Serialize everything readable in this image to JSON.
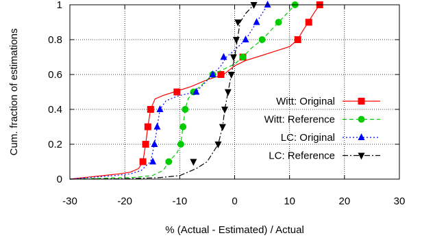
{
  "chart_data": {
    "type": "line",
    "xlabel": "% (Actual - Estimated) / Actual",
    "ylabel": "Cum. fraction of estimations",
    "xlim": [
      -30,
      30
    ],
    "ylim": [
      0,
      1
    ],
    "x_ticks": [
      "-30",
      "-20",
      "-10",
      "0",
      "10",
      "20",
      "30"
    ],
    "y_ticks": [
      "0",
      "0.2",
      "0.4",
      "0.6",
      "0.8",
      "1"
    ],
    "x_tick_values": [
      -30,
      -20,
      -10,
      0,
      10,
      20,
      30
    ],
    "y_tick_values": [
      0,
      0.2,
      0.4,
      0.6,
      0.8,
      1
    ],
    "grid": true,
    "legend_position": "bottom-right",
    "series": [
      {
        "name": "Witt: Original",
        "color": "#ff0000",
        "dash": "solid",
        "marker": "square",
        "curve": [
          [
            -30,
            0
          ],
          [
            -27,
            0.01
          ],
          [
            -24,
            0.02
          ],
          [
            -21,
            0.03
          ],
          [
            -19,
            0.04
          ],
          [
            -17.5,
            0.06
          ],
          [
            -16.7,
            0.1
          ],
          [
            -16.2,
            0.2
          ],
          [
            -15.8,
            0.3
          ],
          [
            -15.3,
            0.4
          ],
          [
            -14.5,
            0.46
          ],
          [
            -13,
            0.48
          ],
          [
            -11,
            0.5
          ],
          [
            -8,
            0.53
          ],
          [
            -5,
            0.57
          ],
          [
            -2,
            0.6
          ],
          [
            0,
            0.65
          ],
          [
            2,
            0.68
          ],
          [
            5,
            0.71
          ],
          [
            8,
            0.74
          ],
          [
            10,
            0.76
          ],
          [
            11.5,
            0.8
          ],
          [
            12.2,
            0.84
          ],
          [
            13,
            0.88
          ],
          [
            13.8,
            0.92
          ],
          [
            14.6,
            0.96
          ],
          [
            15.5,
            1
          ]
        ],
        "markers": [
          [
            -16.7,
            0.1
          ],
          [
            -16.2,
            0.2
          ],
          [
            -15.8,
            0.3
          ],
          [
            -15.3,
            0.4
          ],
          [
            -10.5,
            0.5
          ],
          [
            -2.5,
            0.6
          ],
          [
            1.5,
            0.7
          ],
          [
            11.5,
            0.8
          ],
          [
            13.5,
            0.9
          ],
          [
            15.5,
            1
          ]
        ]
      },
      {
        "name": "Witt: Reference",
        "color": "#00cc00",
        "dash": "6,4",
        "marker": "circle",
        "curve": [
          [
            -30,
            0
          ],
          [
            -24,
            0.005
          ],
          [
            -18,
            0.01
          ],
          [
            -15,
            0.02
          ],
          [
            -13,
            0.05
          ],
          [
            -12,
            0.1
          ],
          [
            -10.5,
            0.15
          ],
          [
            -9.8,
            0.2
          ],
          [
            -9.4,
            0.3
          ],
          [
            -9,
            0.4
          ],
          [
            -8.5,
            0.46
          ],
          [
            -7.5,
            0.5
          ],
          [
            -6,
            0.54
          ],
          [
            -4,
            0.6
          ],
          [
            -2,
            0.63
          ],
          [
            0,
            0.66
          ],
          [
            1.5,
            0.7
          ],
          [
            3,
            0.75
          ],
          [
            5,
            0.8
          ],
          [
            6.5,
            0.85
          ],
          [
            8,
            0.9
          ],
          [
            9.5,
            0.95
          ],
          [
            11,
            1
          ]
        ],
        "markers": [
          [
            -12,
            0.1
          ],
          [
            -9.8,
            0.2
          ],
          [
            -9.4,
            0.3
          ],
          [
            -9,
            0.4
          ],
          [
            -7.5,
            0.5
          ],
          [
            -4,
            0.6
          ],
          [
            1.5,
            0.7
          ],
          [
            5,
            0.8
          ],
          [
            8,
            0.9
          ],
          [
            11,
            1
          ]
        ]
      },
      {
        "name": "LC: Original",
        "color": "#0000ff",
        "dash": "2,3",
        "marker": "triangle",
        "curve": [
          [
            -30,
            0
          ],
          [
            -26,
            0.01
          ],
          [
            -22,
            0.02
          ],
          [
            -19,
            0.03
          ],
          [
            -17,
            0.05
          ],
          [
            -16,
            0.08
          ],
          [
            -15.3,
            0.1
          ],
          [
            -14.6,
            0.2
          ],
          [
            -14.1,
            0.3
          ],
          [
            -13.6,
            0.4
          ],
          [
            -12.5,
            0.45
          ],
          [
            -10,
            0.48
          ],
          [
            -7,
            0.5
          ],
          [
            -5.5,
            0.55
          ],
          [
            -4,
            0.6
          ],
          [
            -2.5,
            0.65
          ],
          [
            -1.5,
            0.7
          ],
          [
            0,
            0.74
          ],
          [
            2,
            0.8
          ],
          [
            3,
            0.85
          ],
          [
            4,
            0.9
          ],
          [
            5,
            0.95
          ],
          [
            6,
            1
          ]
        ],
        "markers": [
          [
            -14.9,
            0.1
          ],
          [
            -14.6,
            0.2
          ],
          [
            -14.1,
            0.3
          ],
          [
            -13.6,
            0.4
          ],
          [
            -7,
            0.5
          ],
          [
            -4,
            0.6
          ],
          [
            -2,
            0.7
          ],
          [
            2,
            0.8
          ],
          [
            4,
            0.9
          ],
          [
            6,
            1
          ]
        ]
      },
      {
        "name": "LC: Reference",
        "color": "#000000",
        "dash": "8,3,2,3",
        "marker": "triangle-down",
        "curve": [
          [
            -30,
            0
          ],
          [
            -20,
            0.002
          ],
          [
            -14,
            0.008
          ],
          [
            -10,
            0.02
          ],
          [
            -7,
            0.06
          ],
          [
            -5,
            0.1
          ],
          [
            -3,
            0.2
          ],
          [
            -2.2,
            0.3
          ],
          [
            -1.8,
            0.4
          ],
          [
            -1.2,
            0.5
          ],
          [
            -0.6,
            0.6
          ],
          [
            0,
            0.7
          ],
          [
            0.5,
            0.8
          ],
          [
            1,
            0.9
          ],
          [
            2,
            0.95
          ],
          [
            3.5,
            1
          ]
        ],
        "markers": [
          [
            -7.5,
            0.1
          ],
          [
            -3,
            0.2
          ],
          [
            -2.2,
            0.3
          ],
          [
            -1.8,
            0.4
          ],
          [
            -1.2,
            0.5
          ],
          [
            -0.6,
            0.6
          ],
          [
            -0.2,
            0.7
          ],
          [
            0.3,
            0.8
          ],
          [
            0.6,
            0.9
          ],
          [
            3.5,
            1
          ]
        ]
      }
    ]
  }
}
